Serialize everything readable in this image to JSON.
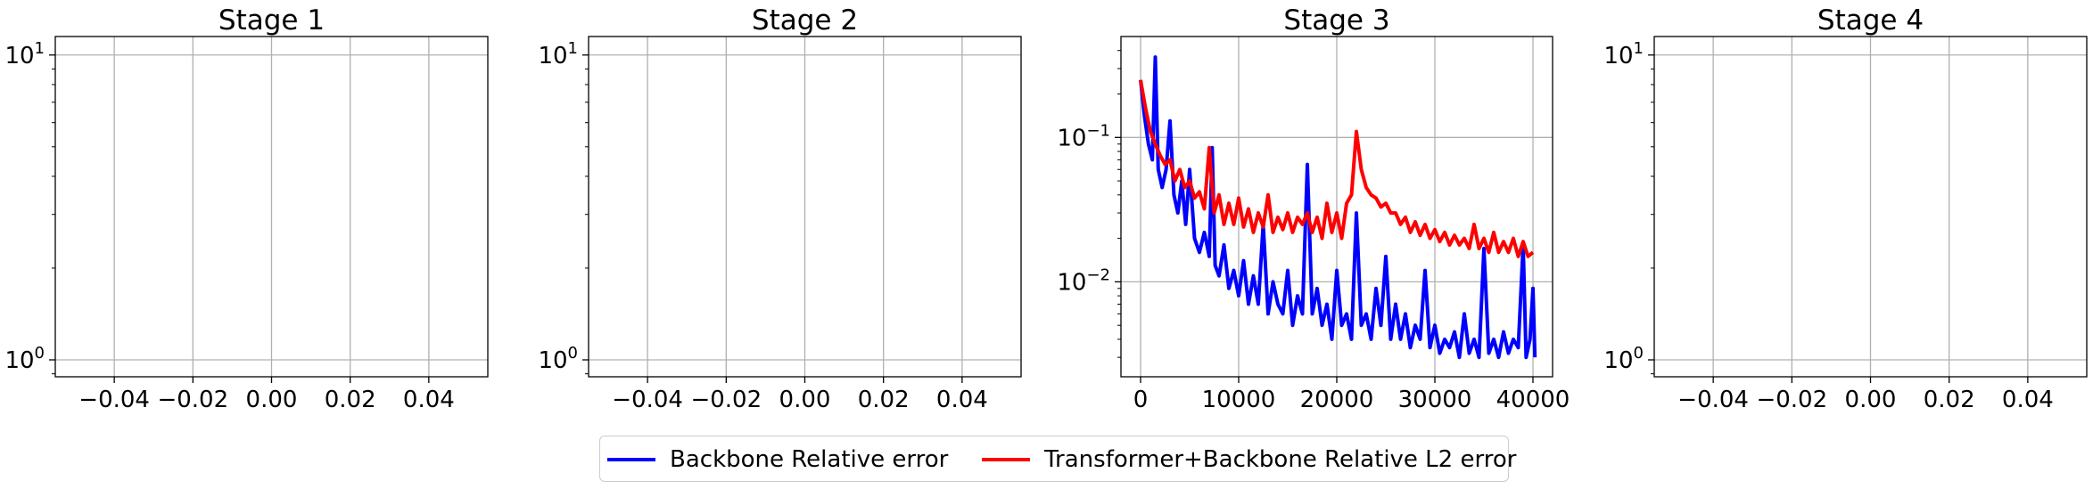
{
  "colors": {
    "backbone": "#0000ff",
    "transformer": "#ff0000",
    "grid": "#b0b0b0"
  },
  "legend": {
    "backbone_label": "Backbone Relative error",
    "transformer_label": "Transformer+Backbone Relative L2 error"
  },
  "chart_data": [
    {
      "type": "line",
      "title": "Stage 1",
      "xlabel": "",
      "ylabel": "",
      "xlim": [
        -0.055,
        0.055
      ],
      "ylim": [
        0.88,
        11.5
      ],
      "yscale": "log",
      "xticks": [
        "−0.04",
        "−0.02",
        "0.00",
        "0.02",
        "0.04"
      ],
      "yticks": [
        {
          "base": "10",
          "exp": "0"
        },
        {
          "base": "10",
          "exp": "1"
        }
      ],
      "grid": true,
      "series": []
    },
    {
      "type": "line",
      "title": "Stage 2",
      "xlabel": "",
      "ylabel": "",
      "xlim": [
        -0.055,
        0.055
      ],
      "ylim": [
        0.88,
        11.5
      ],
      "yscale": "log",
      "xticks": [
        "−0.04",
        "−0.02",
        "0.00",
        "0.02",
        "0.04"
      ],
      "yticks": [
        {
          "base": "10",
          "exp": "0"
        },
        {
          "base": "10",
          "exp": "1"
        }
      ],
      "grid": true,
      "series": []
    },
    {
      "type": "line",
      "title": "Stage 3",
      "xlabel": "",
      "ylabel": "",
      "xlim": [
        -2000,
        42000
      ],
      "ylim": [
        0.0022,
        0.5
      ],
      "yscale": "log",
      "xticks": [
        "0",
        "10000",
        "20000",
        "30000",
        "40000"
      ],
      "yticks": [
        {
          "base": "10",
          "exp": "−2"
        },
        {
          "base": "10",
          "exp": "−1"
        }
      ],
      "grid": true,
      "legend_position": "below",
      "series": [
        {
          "name": "Backbone Relative error",
          "color": "#0000ff",
          "points": [
            [
              0,
              0.25
            ],
            [
              400,
              0.14
            ],
            [
              800,
              0.09
            ],
            [
              1200,
              0.07
            ],
            [
              1500,
              0.36
            ],
            [
              1800,
              0.06
            ],
            [
              2200,
              0.045
            ],
            [
              2600,
              0.06
            ],
            [
              3000,
              0.13
            ],
            [
              3400,
              0.04
            ],
            [
              3800,
              0.03
            ],
            [
              4200,
              0.05
            ],
            [
              4600,
              0.025
            ],
            [
              5000,
              0.06
            ],
            [
              5500,
              0.02
            ],
            [
              6000,
              0.016
            ],
            [
              6500,
              0.022
            ],
            [
              7000,
              0.015
            ],
            [
              7300,
              0.085
            ],
            [
              7600,
              0.013
            ],
            [
              8000,
              0.011
            ],
            [
              8500,
              0.018
            ],
            [
              9000,
              0.009
            ],
            [
              9500,
              0.012
            ],
            [
              10000,
              0.008
            ],
            [
              10500,
              0.014
            ],
            [
              11000,
              0.007
            ],
            [
              11500,
              0.011
            ],
            [
              12000,
              0.007
            ],
            [
              12500,
              0.025
            ],
            [
              13000,
              0.006
            ],
            [
              13500,
              0.01
            ],
            [
              14000,
              0.007
            ],
            [
              14500,
              0.006
            ],
            [
              15000,
              0.012
            ],
            [
              15500,
              0.005
            ],
            [
              16000,
              0.008
            ],
            [
              16500,
              0.006
            ],
            [
              17000,
              0.065
            ],
            [
              17500,
              0.006
            ],
            [
              18000,
              0.009
            ],
            [
              18500,
              0.005
            ],
            [
              19000,
              0.007
            ],
            [
              19500,
              0.004
            ],
            [
              20000,
              0.012
            ],
            [
              20500,
              0.005
            ],
            [
              21000,
              0.006
            ],
            [
              21500,
              0.004
            ],
            [
              22000,
              0.03
            ],
            [
              22500,
              0.005
            ],
            [
              23000,
              0.006
            ],
            [
              23500,
              0.004
            ],
            [
              24000,
              0.009
            ],
            [
              24500,
              0.005
            ],
            [
              25000,
              0.015
            ],
            [
              25500,
              0.004
            ],
            [
              26000,
              0.007
            ],
            [
              26500,
              0.004
            ],
            [
              27000,
              0.006
            ],
            [
              27500,
              0.0035
            ],
            [
              28000,
              0.005
            ],
            [
              28500,
              0.004
            ],
            [
              29000,
              0.012
            ],
            [
              29500,
              0.0035
            ],
            [
              30000,
              0.005
            ],
            [
              30500,
              0.0032
            ],
            [
              31000,
              0.004
            ],
            [
              31500,
              0.0035
            ],
            [
              32000,
              0.0045
            ],
            [
              32500,
              0.003
            ],
            [
              33000,
              0.006
            ],
            [
              33500,
              0.0032
            ],
            [
              34000,
              0.004
            ],
            [
              34500,
              0.003
            ],
            [
              35000,
              0.017
            ],
            [
              35500,
              0.0032
            ],
            [
              36000,
              0.004
            ],
            [
              36500,
              0.003
            ],
            [
              37000,
              0.0045
            ],
            [
              37500,
              0.0032
            ],
            [
              38000,
              0.004
            ],
            [
              38500,
              0.0035
            ],
            [
              39000,
              0.018
            ],
            [
              39300,
              0.003
            ],
            [
              39700,
              0.004
            ],
            [
              40000,
              0.009
            ],
            [
              40200,
              0.003
            ]
          ]
        },
        {
          "name": "Transformer+Backbone Relative L2 error",
          "color": "#ff0000",
          "points": [
            [
              0,
              0.25
            ],
            [
              500,
              0.16
            ],
            [
              1000,
              0.11
            ],
            [
              1500,
              0.09
            ],
            [
              2000,
              0.075
            ],
            [
              2500,
              0.065
            ],
            [
              3000,
              0.07
            ],
            [
              3500,
              0.05
            ],
            [
              4000,
              0.06
            ],
            [
              4500,
              0.045
            ],
            [
              5000,
              0.05
            ],
            [
              5500,
              0.038
            ],
            [
              6000,
              0.042
            ],
            [
              6500,
              0.032
            ],
            [
              7000,
              0.085
            ],
            [
              7500,
              0.03
            ],
            [
              8000,
              0.04
            ],
            [
              8500,
              0.025
            ],
            [
              9000,
              0.035
            ],
            [
              9500,
              0.025
            ],
            [
              10000,
              0.038
            ],
            [
              10500,
              0.024
            ],
            [
              11000,
              0.032
            ],
            [
              11500,
              0.022
            ],
            [
              12000,
              0.03
            ],
            [
              12500,
              0.024
            ],
            [
              13000,
              0.04
            ],
            [
              13500,
              0.022
            ],
            [
              14000,
              0.028
            ],
            [
              14500,
              0.023
            ],
            [
              15000,
              0.03
            ],
            [
              15500,
              0.022
            ],
            [
              16000,
              0.028
            ],
            [
              16500,
              0.025
            ],
            [
              17000,
              0.03
            ],
            [
              17500,
              0.022
            ],
            [
              18000,
              0.028
            ],
            [
              18500,
              0.02
            ],
            [
              19000,
              0.035
            ],
            [
              19500,
              0.022
            ],
            [
              20000,
              0.03
            ],
            [
              20500,
              0.02
            ],
            [
              21000,
              0.035
            ],
            [
              21500,
              0.04
            ],
            [
              22000,
              0.11
            ],
            [
              22500,
              0.06
            ],
            [
              23000,
              0.045
            ],
            [
              23500,
              0.04
            ],
            [
              24000,
              0.038
            ],
            [
              24500,
              0.033
            ],
            [
              25000,
              0.035
            ],
            [
              25500,
              0.03
            ],
            [
              26000,
              0.03
            ],
            [
              26500,
              0.025
            ],
            [
              27000,
              0.028
            ],
            [
              27500,
              0.022
            ],
            [
              28000,
              0.026
            ],
            [
              28500,
              0.021
            ],
            [
              29000,
              0.025
            ],
            [
              29500,
              0.02
            ],
            [
              30000,
              0.023
            ],
            [
              30500,
              0.019
            ],
            [
              31000,
              0.022
            ],
            [
              31500,
              0.018
            ],
            [
              32000,
              0.021
            ],
            [
              32500,
              0.018
            ],
            [
              33000,
              0.02
            ],
            [
              33500,
              0.017
            ],
            [
              34000,
              0.025
            ],
            [
              34500,
              0.017
            ],
            [
              35000,
              0.02
            ],
            [
              35500,
              0.016
            ],
            [
              36000,
              0.022
            ],
            [
              36500,
              0.016
            ],
            [
              37000,
              0.019
            ],
            [
              37500,
              0.016
            ],
            [
              38000,
              0.02
            ],
            [
              38500,
              0.015
            ],
            [
              39000,
              0.019
            ],
            [
              39500,
              0.015
            ],
            [
              40000,
              0.016
            ]
          ]
        }
      ]
    },
    {
      "type": "line",
      "title": "Stage 4",
      "xlabel": "",
      "ylabel": "",
      "xlim": [
        -0.055,
        0.055
      ],
      "ylim": [
        0.88,
        11.5
      ],
      "yscale": "log",
      "xticks": [
        "−0.04",
        "−0.02",
        "0.00",
        "0.02",
        "0.04"
      ],
      "yticks": [
        {
          "base": "10",
          "exp": "0"
        },
        {
          "base": "10",
          "exp": "1"
        }
      ],
      "grid": true,
      "series": []
    }
  ]
}
